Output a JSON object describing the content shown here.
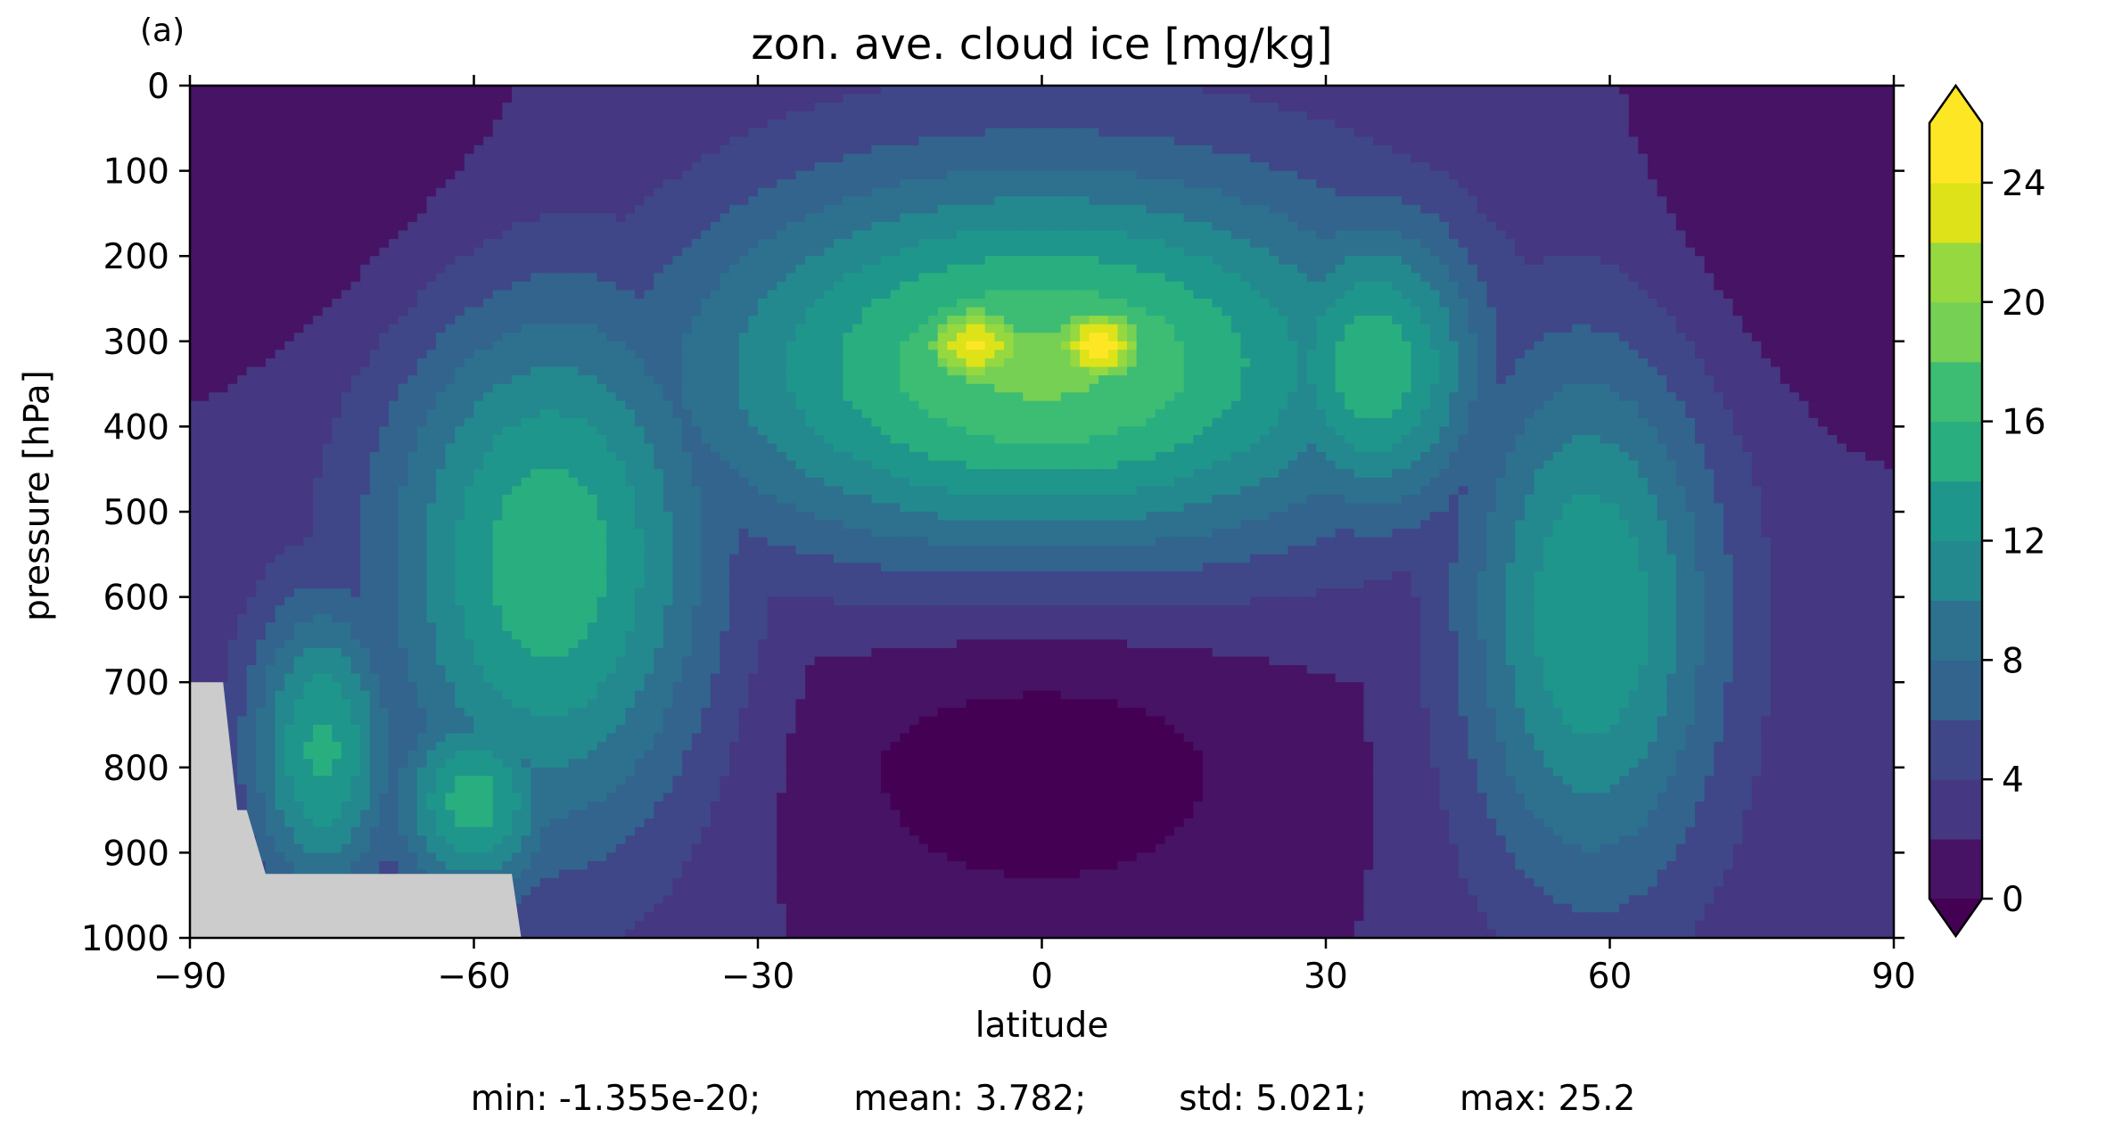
{
  "chart_data": {
    "type": "heatmap",
    "panel_label": "(a)",
    "title": "zon. ave. cloud ice [mg/kg]",
    "xlabel": "latitude",
    "ylabel": "pressure [hPa]",
    "xlim": [
      -90,
      90
    ],
    "ylim": [
      1000,
      0
    ],
    "y_inverted": true,
    "x_ticks": [
      -90,
      -60,
      -30,
      0,
      30,
      60,
      90
    ],
    "x_tick_labels": [
      "−90",
      "−60",
      "−30",
      "0",
      "30",
      "60",
      "90"
    ],
    "y_ticks": [
      0,
      100,
      200,
      300,
      400,
      500,
      600,
      700,
      800,
      900,
      1000
    ],
    "y_tick_labels": [
      "0",
      "100",
      "200",
      "300",
      "400",
      "500",
      "600",
      "700",
      "800",
      "900",
      "1000"
    ],
    "colorbar": {
      "ticks": [
        0,
        4,
        8,
        12,
        16,
        20,
        24
      ],
      "tick_labels": [
        "0",
        "4",
        "8",
        "12",
        "16",
        "20",
        "24"
      ],
      "levels": [
        0,
        2,
        4,
        6,
        8,
        10,
        12,
        14,
        16,
        18,
        20,
        22,
        24,
        26
      ],
      "extend": "both",
      "colors": [
        "#471365",
        "#482576",
        "#453781",
        "#3f4788",
        "#39558c",
        "#32648e",
        "#2d718e",
        "#287d8e",
        "#23898e",
        "#1f968b",
        "#1fa287",
        "#29af7f",
        "#3dbc74",
        "#56c667",
        "#75d054",
        "#95d840",
        "#bade28",
        "#dde318",
        "#fde725"
      ],
      "under_color": "#440154",
      "over_color": "#fde725"
    },
    "missing_color": "#cccccc",
    "field_model": {
      "background": 2.2,
      "features": [
        {
          "name": "equatorial-high-cloud-band",
          "lat": 0,
          "p": 330,
          "value": 18.5,
          "lat_width": 38,
          "p_width": 230
        },
        {
          "name": "peak-south-of-equator",
          "lat": -7,
          "p": 305,
          "value": 24.3,
          "lat_width": 8,
          "p_width": 70
        },
        {
          "name": "peak-north-of-equator",
          "lat": 6,
          "p": 305,
          "value": 25.2,
          "lat_width": 7,
          "p_width": 65
        },
        {
          "name": "northern-subtropical-maximum",
          "lat": 35,
          "p": 330,
          "value": 15.5,
          "lat_width": 12,
          "p_width": 180
        },
        {
          "name": "northern-midlatitude-maximum",
          "lat": 58,
          "p": 620,
          "value": 14,
          "lat_width": 14,
          "p_width": 330
        },
        {
          "name": "southern-midlatitude-maximum",
          "lat": -52,
          "p": 560,
          "value": 15.5,
          "lat_width": 18,
          "p_width": 330
        },
        {
          "name": "southern-high-latitude-maximum",
          "lat": -76,
          "p": 780,
          "value": 14.5,
          "lat_width": 8,
          "p_width": 180
        },
        {
          "name": "southern-lower-maximum",
          "lat": -60,
          "p": 840,
          "value": 15,
          "lat_width": 9,
          "p_width": 120
        }
      ],
      "low_regions": [
        {
          "name": "tropical-lower-troposphere-minimum",
          "lat": 0,
          "p": 780,
          "value": -3.5,
          "lat_width": 28,
          "p_width": 220
        },
        {
          "name": "polar-stratosphere-south",
          "lat": -75,
          "p": 120,
          "value": -2,
          "lat_width": 30,
          "p_width": 200
        },
        {
          "name": "polar-stratosphere-north",
          "lat": 80,
          "p": 150,
          "value": -2,
          "lat_width": 20,
          "p_width": 220
        }
      ]
    },
    "missing_regions": [
      {
        "name": "antarctic-surface-mask",
        "polygon": [
          [
            -90,
            700
          ],
          [
            -86.5,
            700
          ],
          [
            -85,
            850
          ],
          [
            -84,
            850
          ],
          [
            -82,
            925
          ],
          [
            -56,
            925
          ],
          [
            -55,
            1000
          ],
          [
            -90,
            1000
          ]
        ]
      }
    ],
    "stats": {
      "min": "min: -1.355e-20;",
      "mean": "mean: 3.782;",
      "std": "std: 5.021;",
      "max": "max: 25.2"
    }
  }
}
